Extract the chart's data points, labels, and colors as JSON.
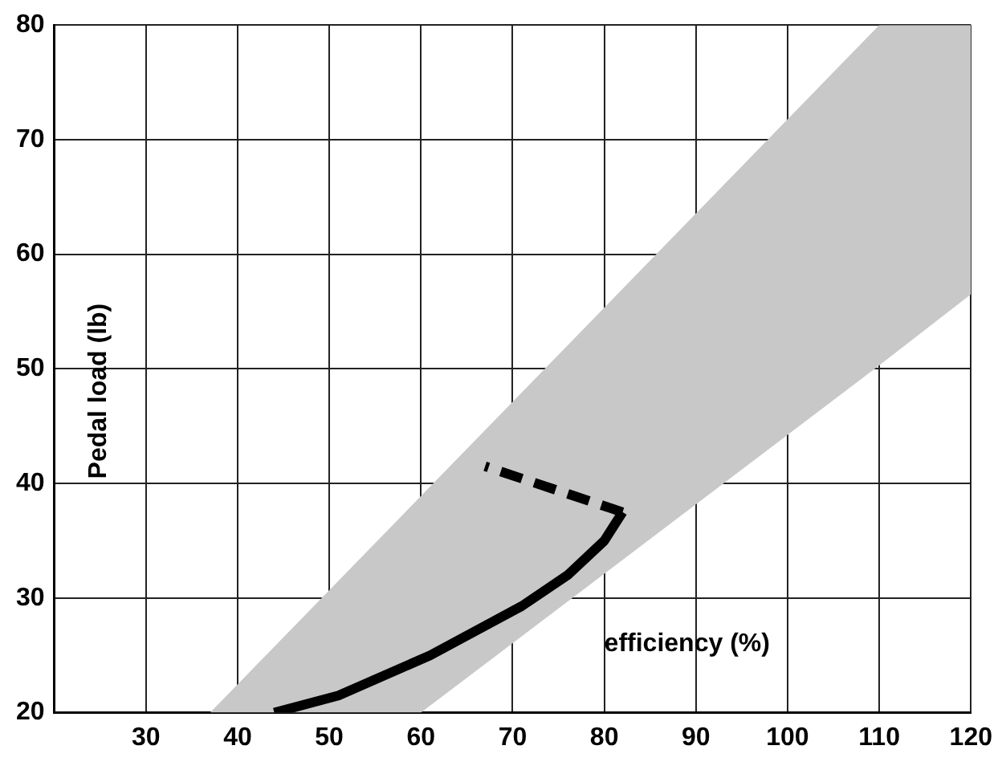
{
  "chart_data": {
    "type": "line",
    "xlabel": "efficiency (%)",
    "ylabel": "Pedal load (lb)",
    "xlim": [
      20,
      120
    ],
    "xticks": [
      30,
      40,
      50,
      60,
      70,
      80,
      90,
      100,
      110,
      120
    ],
    "ylim": [
      20,
      80
    ],
    "yticks": [
      20,
      30,
      40,
      50,
      60,
      70,
      80
    ],
    "grid": true,
    "legend": false,
    "series": [
      {
        "type": "area",
        "color": "#c8c8c8",
        "x": [
          37,
          60,
          110,
          120
        ],
        "values": [
          null,
          null,
          null,
          null
        ],
        "lower": [
          20,
          20,
          50.3,
          56.5
        ],
        "upper": [
          20,
          38.9,
          80,
          80
        ]
      },
      {
        "color": "#000000",
        "line_style": "solid",
        "x": [
          44,
          51,
          61,
          71,
          76,
          80,
          82
        ],
        "values": [
          20,
          21.5,
          25,
          29.3,
          32,
          35,
          37.5
        ]
      },
      {
        "color": "#000000",
        "line_style": "dashed",
        "x": [
          82,
          67
        ],
        "values": [
          37.5,
          41.5
        ]
      }
    ]
  }
}
